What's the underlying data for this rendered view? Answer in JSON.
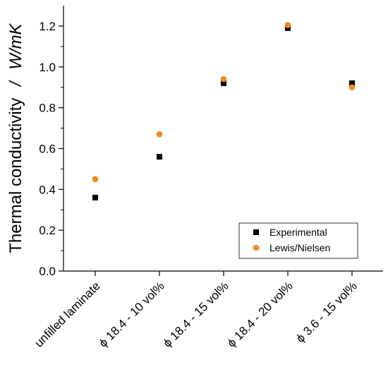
{
  "chart_data": {
    "type": "scatter",
    "title": "",
    "xlabel": "",
    "ylabel": "Thermal conductivity",
    "ylabel_separator": "/",
    "ylabel_unit": "W/mK",
    "categories": [
      "unfilled laminate",
      "ϕ 18.4 - 10 vol%",
      "ϕ 18.4 - 15 vol%",
      "ϕ 18.4 - 20 vol%",
      "ϕ 3.6 - 15 vol%"
    ],
    "ylim": [
      0.0,
      1.3
    ],
    "yticks": [
      "0.0",
      "0.2",
      "0.4",
      "0.6",
      "0.8",
      "1.0",
      "1.2"
    ],
    "grid": false,
    "legend_position": "bottom-right",
    "series": [
      {
        "name": "Experimental",
        "marker": "square",
        "color": "#000000",
        "values": [
          0.36,
          0.56,
          0.92,
          1.19,
          0.92
        ]
      },
      {
        "name": "Lewis/Nielsen",
        "marker": "circle",
        "color": "#f28a1e",
        "values": [
          0.45,
          0.67,
          0.94,
          1.205,
          0.9
        ]
      }
    ]
  }
}
